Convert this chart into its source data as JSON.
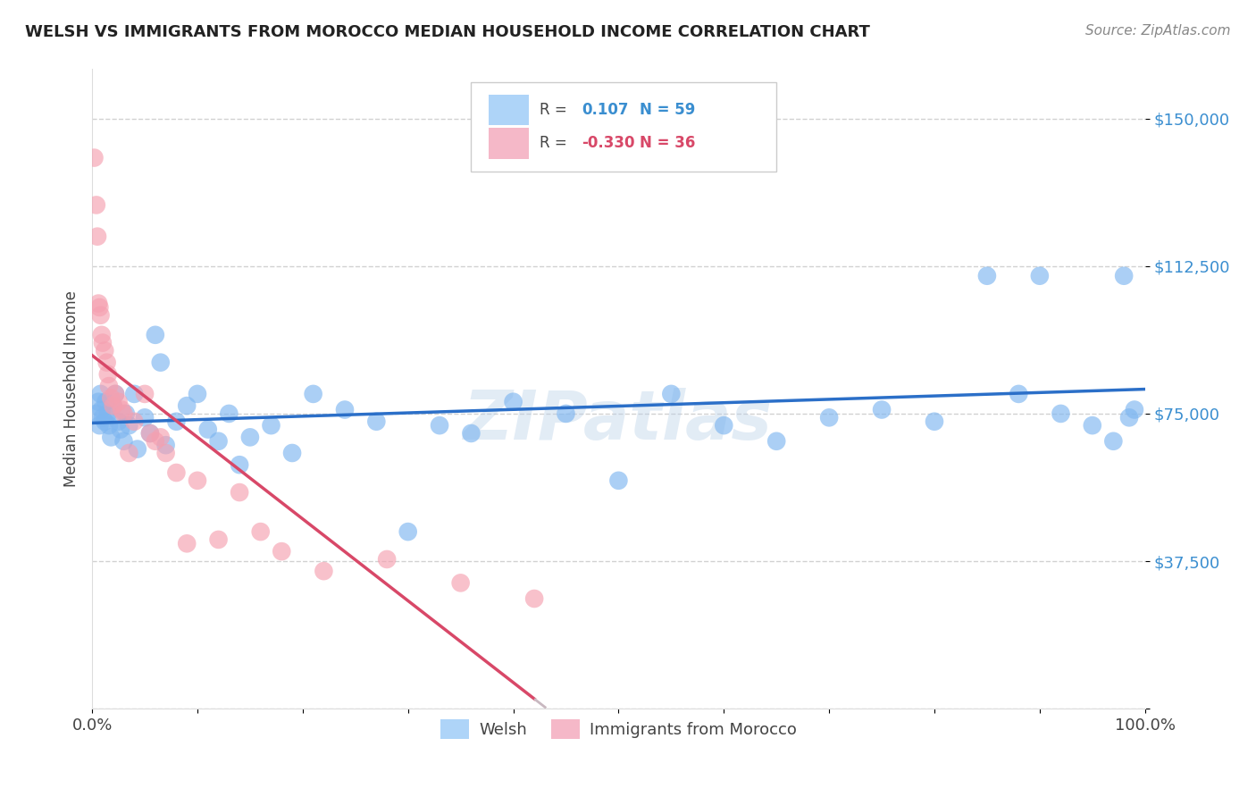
{
  "title": "WELSH VS IMMIGRANTS FROM MOROCCO MEDIAN HOUSEHOLD INCOME CORRELATION CHART",
  "source": "Source: ZipAtlas.com",
  "ylabel": "Median Household Income",
  "watermark": "ZIPatlas",
  "welsh_R": "0.107",
  "welsh_N": "59",
  "morocco_R": "-0.330",
  "morocco_N": "36",
  "welsh_color": "#7EB6F0",
  "morocco_color": "#F5A0B0",
  "welsh_line_color": "#2B6FC8",
  "morocco_line_color": "#D84868",
  "morocco_dashed_color": "#C8B8C0",
  "legend_box_welsh": "#AED4F8",
  "legend_box_morocco": "#F5B8C8",
  "welsh_x": [
    0.004,
    0.006,
    0.007,
    0.008,
    0.009,
    0.01,
    0.012,
    0.013,
    0.015,
    0.016,
    0.018,
    0.02,
    0.022,
    0.025,
    0.027,
    0.03,
    0.032,
    0.035,
    0.04,
    0.043,
    0.05,
    0.055,
    0.06,
    0.065,
    0.07,
    0.08,
    0.09,
    0.1,
    0.11,
    0.12,
    0.13,
    0.14,
    0.15,
    0.17,
    0.19,
    0.21,
    0.24,
    0.27,
    0.3,
    0.33,
    0.36,
    0.4,
    0.45,
    0.5,
    0.55,
    0.6,
    0.65,
    0.7,
    0.75,
    0.8,
    0.85,
    0.88,
    0.9,
    0.92,
    0.95,
    0.97,
    0.98,
    0.985,
    0.99
  ],
  "welsh_y": [
    75000,
    78000,
    72000,
    80000,
    76000,
    74000,
    73000,
    78000,
    75000,
    72000,
    69000,
    77000,
    80000,
    73000,
    71000,
    68000,
    75000,
    72000,
    80000,
    66000,
    74000,
    70000,
    95000,
    88000,
    67000,
    73000,
    77000,
    80000,
    71000,
    68000,
    75000,
    62000,
    69000,
    72000,
    65000,
    80000,
    76000,
    73000,
    45000,
    72000,
    70000,
    78000,
    75000,
    58000,
    80000,
    72000,
    68000,
    74000,
    76000,
    73000,
    110000,
    80000,
    110000,
    75000,
    72000,
    68000,
    110000,
    74000,
    76000
  ],
  "morocco_x": [
    0.002,
    0.004,
    0.005,
    0.006,
    0.007,
    0.008,
    0.009,
    0.01,
    0.012,
    0.014,
    0.015,
    0.016,
    0.018,
    0.02,
    0.022,
    0.025,
    0.028,
    0.03,
    0.035,
    0.04,
    0.05,
    0.055,
    0.06,
    0.065,
    0.07,
    0.08,
    0.09,
    0.1,
    0.12,
    0.14,
    0.16,
    0.18,
    0.22,
    0.28,
    0.35,
    0.42
  ],
  "morocco_y": [
    140000,
    128000,
    120000,
    103000,
    102000,
    100000,
    95000,
    93000,
    91000,
    88000,
    85000,
    82000,
    79000,
    77000,
    80000,
    78000,
    76000,
    75000,
    65000,
    73000,
    80000,
    70000,
    68000,
    69000,
    65000,
    60000,
    42000,
    58000,
    43000,
    55000,
    45000,
    40000,
    35000,
    38000,
    32000,
    28000
  ],
  "xlim": [
    0.0,
    1.0
  ],
  "ylim": [
    0,
    162500
  ],
  "yticks": [
    0,
    37500,
    75000,
    112500,
    150000
  ],
  "ytick_labels": [
    "",
    "$37,500",
    "$75,000",
    "$112,500",
    "$150,000"
  ],
  "background_color": "#FFFFFF",
  "grid_color": "#CCCCCC",
  "title_fontsize": 13,
  "axis_label_fontsize": 12,
  "tick_fontsize": 13
}
